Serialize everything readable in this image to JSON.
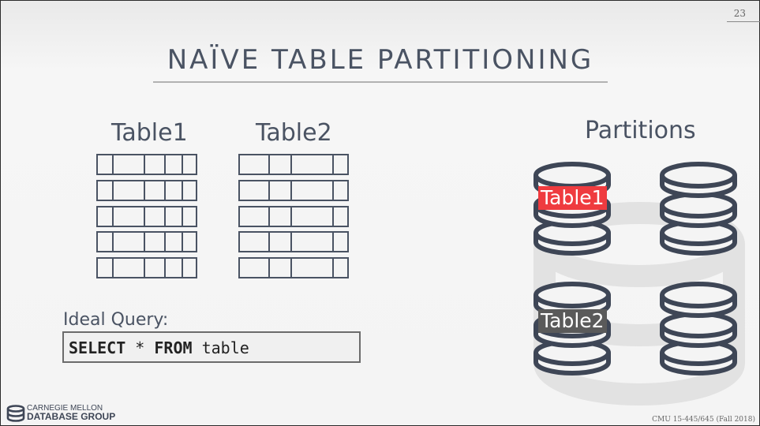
{
  "slide": {
    "number": "23",
    "title": "NAÏVE TABLE PARTITIONING",
    "course": "CMU 15-445/645 (Fall 2018)"
  },
  "tables": {
    "table1_label": "Table1",
    "table2_label": "Table2"
  },
  "query": {
    "label": "Ideal Query:",
    "keyword_select": "SELECT",
    "star": " * ",
    "keyword_from": "FROM",
    "table": " table"
  },
  "partitions": {
    "heading": "Partitions",
    "label_table1": "Table1",
    "label_table2": "Table2",
    "label_table1_color": "#ef3b3f",
    "label_table2_color": "#5a5a5a"
  },
  "logo": {
    "line1": "CARNEGIE MELLON",
    "line2": "DATABASE GROUP"
  }
}
